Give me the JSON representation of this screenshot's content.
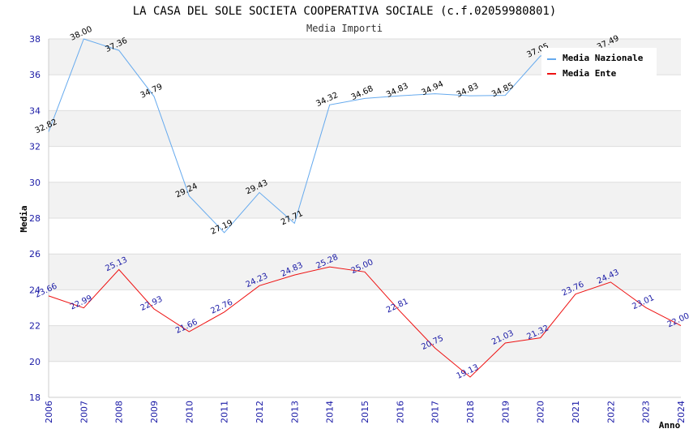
{
  "chart_data": {
    "type": "line",
    "title": "LA CASA DEL SOLE SOCIETA COOPERATIVA SOCIALE (c.f.02059980801)",
    "subtitle": "Media Importi",
    "xlabel": "Anno",
    "ylabel": "Media",
    "ylim": [
      18,
      38
    ],
    "yticks": [
      18,
      20,
      22,
      24,
      26,
      28,
      30,
      32,
      34,
      36,
      38
    ],
    "categories": [
      "2006",
      "2007",
      "2008",
      "2009",
      "2010",
      "2011",
      "2012",
      "2013",
      "2014",
      "2015",
      "2016",
      "2017",
      "2018",
      "2019",
      "2020",
      "2021",
      "2022",
      "2023",
      "2024"
    ],
    "grid": true,
    "legend_position": "top-right",
    "series": [
      {
        "name": "Media Nazionale",
        "color": "#66aaee",
        "values": [
          32.82,
          38.0,
          37.36,
          34.79,
          29.24,
          27.19,
          29.43,
          27.71,
          34.32,
          34.68,
          34.83,
          34.94,
          34.83,
          34.85,
          37.05,
          null,
          37.49,
          null,
          null
        ],
        "labels": [
          "32.82",
          "38.00",
          "37.36",
          "34.79",
          "29.24",
          "27.19",
          "29.43",
          "27.71",
          "34.32",
          "34.68",
          "34.83",
          "34.94",
          "34.83",
          "34.85",
          "37.05",
          "",
          "37.49",
          "",
          ""
        ]
      },
      {
        "name": "Media Ente",
        "color": "#ee1111",
        "values": [
          23.66,
          22.99,
          25.13,
          22.93,
          21.66,
          22.76,
          24.23,
          24.83,
          25.28,
          25.0,
          22.81,
          20.75,
          19.13,
          21.03,
          21.32,
          23.76,
          24.43,
          23.01,
          22.0
        ],
        "labels": [
          "23.66",
          "22.99",
          "25.13",
          "22.93",
          "21.66",
          "22.76",
          "24.23",
          "24.83",
          "25.28",
          "25.00",
          "22.81",
          "20.75",
          "19.13",
          "21.03",
          "21.32",
          "23.76",
          "24.43",
          "23.01",
          "22.00"
        ]
      }
    ]
  }
}
